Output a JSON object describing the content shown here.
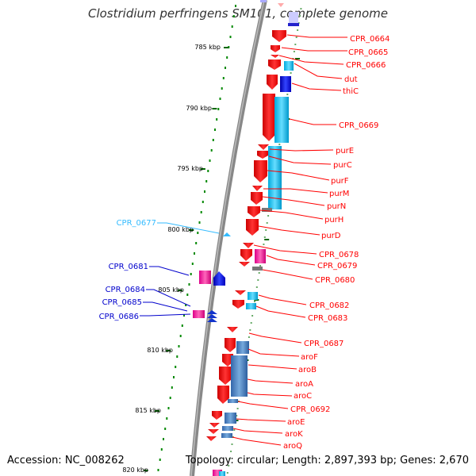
{
  "title": "Clostridium perfringens SM101, complete genome",
  "accession": "Accession: NC_008262",
  "topology": "Topology: circular; Length: 2,897,393 bp; Genes: 2,670",
  "ruler": [
    "785 kbp",
    "790 kbp",
    "795 kbp",
    "800 kbp",
    "805 kbp",
    "810 kbp",
    "815 kbp",
    "820 kbp"
  ],
  "colors": {
    "gene_label_right": "#ff0000",
    "gene_label_left": "#0000cc",
    "rna_label": "#33bbff",
    "backbone": "#888888",
    "tick": "#006600"
  },
  "genes_right": [
    {
      "label": "CPR_0664"
    },
    {
      "label": "CPR_0665"
    },
    {
      "label": "CPR_0666"
    },
    {
      "label": "dut"
    },
    {
      "label": "thiC"
    },
    {
      "label": "CPR_0669"
    },
    {
      "label": "purE"
    },
    {
      "label": "purC"
    },
    {
      "label": "purF"
    },
    {
      "label": "purM"
    },
    {
      "label": "purN"
    },
    {
      "label": "purH"
    },
    {
      "label": "purD"
    },
    {
      "label": "CPR_0678"
    },
    {
      "label": "CPR_0679"
    },
    {
      "label": "CPR_0680"
    },
    {
      "label": "CPR_0682"
    },
    {
      "label": "CPR_0683"
    },
    {
      "label": "CPR_0687"
    },
    {
      "label": "aroF"
    },
    {
      "label": "aroB"
    },
    {
      "label": "aroA"
    },
    {
      "label": "aroC"
    },
    {
      "label": "CPR_0692"
    },
    {
      "label": "aroE"
    },
    {
      "label": "aroK"
    },
    {
      "label": "aroQ"
    }
  ],
  "genes_left": [
    {
      "label": "CPR_0677",
      "kind": "rna"
    },
    {
      "label": "CPR_0681"
    },
    {
      "label": "CPR_0684"
    },
    {
      "label": "CPR_0685"
    },
    {
      "label": "CPR_0686"
    }
  ]
}
